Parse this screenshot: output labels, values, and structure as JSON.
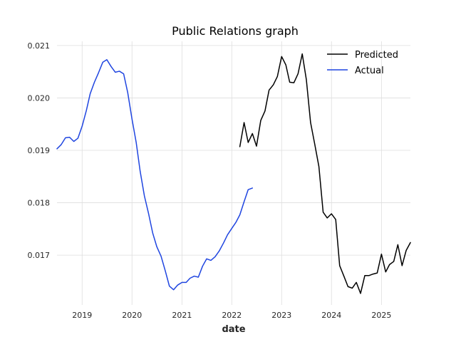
{
  "chart_data": {
    "type": "line",
    "title": "Public Relations graph",
    "xlabel": "date",
    "ylabel": "",
    "x_type": "date",
    "xlim": [
      "2018-07-01",
      "2025-08-01"
    ],
    "ylim": [
      0.01605,
      0.02108
    ],
    "x_ticks": [
      {
        "date": "2019-01-01",
        "label": "2019"
      },
      {
        "date": "2020-01-01",
        "label": "2020"
      },
      {
        "date": "2021-01-01",
        "label": "2021"
      },
      {
        "date": "2022-01-01",
        "label": "2022"
      },
      {
        "date": "2023-01-01",
        "label": "2023"
      },
      {
        "date": "2024-01-01",
        "label": "2024"
      },
      {
        "date": "2025-01-01",
        "label": "2025"
      }
    ],
    "y_ticks": [
      {
        "value": 0.017,
        "label": "0.017"
      },
      {
        "value": 0.018,
        "label": "0.018"
      },
      {
        "value": 0.019,
        "label": "0.019"
      },
      {
        "value": 0.02,
        "label": "0.020"
      },
      {
        "value": 0.021,
        "label": "0.021"
      }
    ],
    "grid": true,
    "legend_position": "top-right",
    "series": [
      {
        "name": "Predicted",
        "color": "#000000",
        "points": [
          [
            "2022-03-01",
            0.01907
          ],
          [
            "2022-04-01",
            0.01953
          ],
          [
            "2022-05-01",
            0.01915
          ],
          [
            "2022-06-01",
            0.01932
          ],
          [
            "2022-07-01",
            0.01908
          ],
          [
            "2022-08-01",
            0.01957
          ],
          [
            "2022-09-01",
            0.01975
          ],
          [
            "2022-10-01",
            0.02015
          ],
          [
            "2022-11-01",
            0.02025
          ],
          [
            "2022-12-01",
            0.02041
          ],
          [
            "2023-01-01",
            0.02079
          ],
          [
            "2023-02-01",
            0.02063
          ],
          [
            "2023-03-01",
            0.0203
          ],
          [
            "2023-04-01",
            0.02029
          ],
          [
            "2023-05-01",
            0.02046
          ],
          [
            "2023-06-01",
            0.02084
          ],
          [
            "2023-07-01",
            0.02035
          ],
          [
            "2023-08-01",
            0.01953
          ],
          [
            "2023-09-01",
            0.01911
          ],
          [
            "2023-10-01",
            0.01869
          ],
          [
            "2023-11-01",
            0.01782
          ],
          [
            "2023-12-01",
            0.01771
          ],
          [
            "2024-01-01",
            0.01779
          ],
          [
            "2024-02-01",
            0.01768
          ],
          [
            "2024-03-01",
            0.0168
          ],
          [
            "2024-04-01",
            0.0166
          ],
          [
            "2024-05-01",
            0.0164
          ],
          [
            "2024-06-01",
            0.01637
          ],
          [
            "2024-07-01",
            0.01648
          ],
          [
            "2024-08-01",
            0.01627
          ],
          [
            "2024-09-01",
            0.01661
          ],
          [
            "2024-10-01",
            0.01661
          ],
          [
            "2024-11-01",
            0.01664
          ],
          [
            "2024-12-01",
            0.01666
          ],
          [
            "2025-01-01",
            0.01702
          ],
          [
            "2025-02-01",
            0.01668
          ],
          [
            "2025-03-01",
            0.01682
          ],
          [
            "2025-04-01",
            0.01688
          ],
          [
            "2025-05-01",
            0.0172
          ],
          [
            "2025-06-01",
            0.0168
          ],
          [
            "2025-07-01",
            0.01709
          ],
          [
            "2025-08-01",
            0.01724
          ]
        ]
      },
      {
        "name": "Actual",
        "color": "#1f45e0",
        "points": [
          [
            "2018-07-01",
            0.01903
          ],
          [
            "2018-08-01",
            0.01911
          ],
          [
            "2018-09-01",
            0.01924
          ],
          [
            "2018-10-01",
            0.01925
          ],
          [
            "2018-11-01",
            0.01917
          ],
          [
            "2018-12-01",
            0.01923
          ],
          [
            "2019-01-01",
            0.01946
          ],
          [
            "2019-02-01",
            0.01976
          ],
          [
            "2019-03-01",
            0.02008
          ],
          [
            "2019-04-01",
            0.0203
          ],
          [
            "2019-05-01",
            0.02048
          ],
          [
            "2019-06-01",
            0.02068
          ],
          [
            "2019-07-01",
            0.02073
          ],
          [
            "2019-08-01",
            0.0206
          ],
          [
            "2019-09-01",
            0.02049
          ],
          [
            "2019-10-01",
            0.02051
          ],
          [
            "2019-11-01",
            0.02046
          ],
          [
            "2019-12-01",
            0.0201
          ],
          [
            "2020-01-01",
            0.0196
          ],
          [
            "2020-02-01",
            0.01915
          ],
          [
            "2020-03-01",
            0.0186
          ],
          [
            "2020-04-01",
            0.01813
          ],
          [
            "2020-05-01",
            0.0178
          ],
          [
            "2020-06-01",
            0.01742
          ],
          [
            "2020-07-01",
            0.01716
          ],
          [
            "2020-08-01",
            0.01698
          ],
          [
            "2020-09-01",
            0.0167
          ],
          [
            "2020-10-01",
            0.01641
          ],
          [
            "2020-11-01",
            0.01634
          ],
          [
            "2020-12-01",
            0.01643
          ],
          [
            "2021-01-01",
            0.01648
          ],
          [
            "2021-02-01",
            0.01648
          ],
          [
            "2021-03-01",
            0.01656
          ],
          [
            "2021-04-01",
            0.0166
          ],
          [
            "2021-05-01",
            0.01658
          ],
          [
            "2021-06-01",
            0.01679
          ],
          [
            "2021-07-01",
            0.01693
          ],
          [
            "2021-08-01",
            0.0169
          ],
          [
            "2021-09-01",
            0.01697
          ],
          [
            "2021-10-01",
            0.01708
          ],
          [
            "2021-11-01",
            0.01723
          ],
          [
            "2021-12-01",
            0.01739
          ],
          [
            "2022-01-01",
            0.01751
          ],
          [
            "2022-02-01",
            0.01763
          ],
          [
            "2022-03-01",
            0.01777
          ],
          [
            "2022-04-01",
            0.01802
          ],
          [
            "2022-05-01",
            0.01825
          ],
          [
            "2022-06-01",
            0.01828
          ]
        ]
      }
    ]
  }
}
